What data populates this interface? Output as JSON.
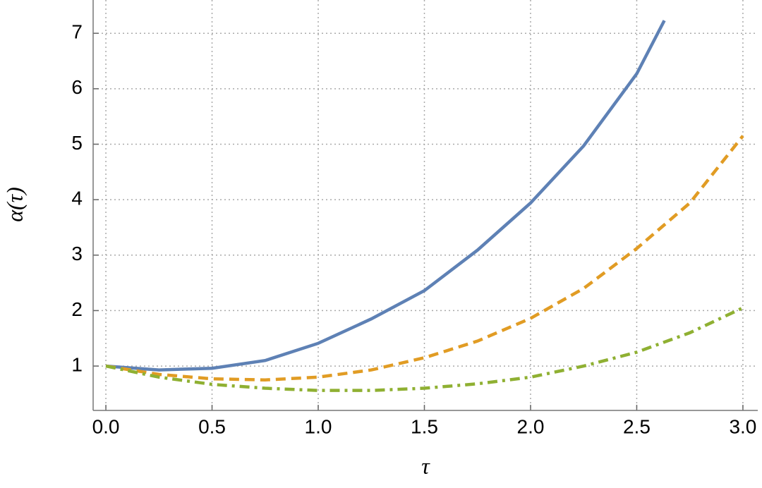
{
  "chart_data": {
    "type": "line",
    "x_label": "τ",
    "y_label": "α(τ)",
    "xlim": [
      -0.06,
      3.07
    ],
    "ylim": [
      0.2,
      7.6
    ],
    "xticks": [
      {
        "value": 0,
        "label": "0.0"
      },
      {
        "value": 0.5,
        "label": "0.5"
      },
      {
        "value": 1,
        "label": "1.0"
      },
      {
        "value": 1.5,
        "label": "1.5"
      },
      {
        "value": 2,
        "label": "2.0"
      },
      {
        "value": 2.5,
        "label": "2.5"
      },
      {
        "value": 3,
        "label": "3.0"
      }
    ],
    "yticks": [
      1,
      2,
      3,
      4,
      5,
      6,
      7
    ],
    "grid": true,
    "series": [
      {
        "color": "#5e81b5",
        "dash": "solid",
        "x": [
          0,
          0.25,
          0.5,
          0.75,
          1,
          1.25,
          1.5,
          1.75,
          2,
          2.25,
          2.5,
          2.63
        ],
        "values": [
          1,
          0.93,
          0.96,
          1.1,
          1.41,
          1.85,
          2.36,
          3.09,
          3.94,
          4.97,
          6.27,
          7.23
        ]
      },
      {
        "color": "#e19c24",
        "dash": "dashed",
        "x": [
          0,
          0.25,
          0.5,
          0.75,
          1,
          1.25,
          1.5,
          1.75,
          2,
          2.25,
          2.5,
          2.75,
          3
        ],
        "values": [
          1,
          0.85,
          0.77,
          0.75,
          0.8,
          0.93,
          1.15,
          1.45,
          1.86,
          2.4,
          3.12,
          3.94,
          5.15
        ]
      },
      {
        "color": "#8fb032",
        "dash": "dashdot",
        "x": [
          0,
          0.25,
          0.5,
          0.75,
          1,
          1.25,
          1.5,
          1.75,
          2,
          2.25,
          2.5,
          2.75,
          3
        ],
        "values": [
          1,
          0.8,
          0.67,
          0.6,
          0.56,
          0.56,
          0.6,
          0.68,
          0.8,
          1.0,
          1.25,
          1.6,
          2.05
        ]
      }
    ]
  }
}
